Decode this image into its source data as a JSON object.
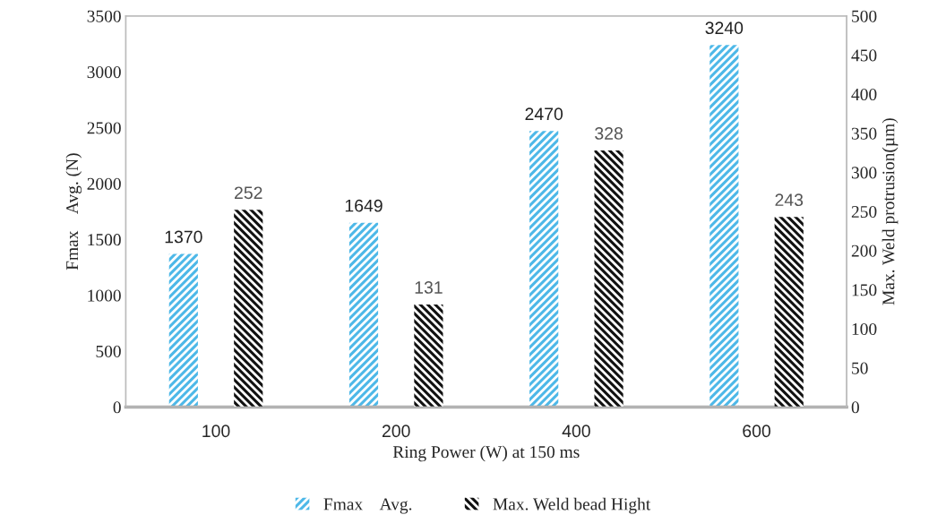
{
  "chart_data": {
    "type": "bar",
    "xlabel": "Ring Power (W) at 150 ms",
    "ylabel": "Fmax    Avg. (N)",
    "y2label": "Max. Weld protrusion(µm)",
    "categories": [
      "100",
      "200",
      "400",
      "600"
    ],
    "series": [
      {
        "name": "Fmax    Avg.",
        "color": "#4db8e8",
        "values": [
          1370,
          1649,
          2470,
          3240
        ]
      },
      {
        "name": "Max. Weld bead Hight",
        "color": "#111111",
        "values": [
          252,
          131,
          328,
          243
        ],
        "axis": "y2"
      }
    ],
    "ylim": [
      0,
      3500
    ],
    "yticks": [
      0,
      500,
      1000,
      1500,
      2000,
      2500,
      3000,
      3500
    ],
    "y2lim": [
      0,
      500
    ],
    "y2ticks": [
      0,
      50,
      100,
      150,
      200,
      250,
      300,
      350,
      400,
      450,
      500
    ],
    "data_labels": true,
    "legend": "bottom",
    "grid": false
  }
}
